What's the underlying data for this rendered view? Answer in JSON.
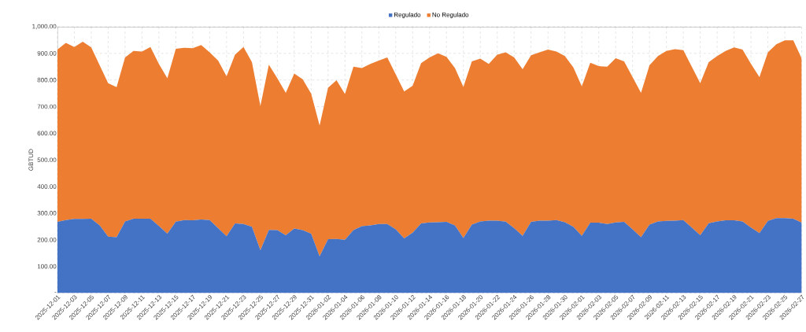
{
  "chart_data": {
    "type": "area",
    "stacked": true,
    "ylabel": "GBTUD",
    "legend": "top",
    "grid": true,
    "categories": [
      "2025-12-01",
      null,
      "2025-12-03",
      null,
      "2025-12-05",
      null,
      "2025-12-07",
      null,
      "2025-12-09",
      null,
      "2025-12-11",
      null,
      "2025-12-13",
      null,
      "2025-12-15",
      null,
      "2025-12-17",
      null,
      "2025-12-19",
      null,
      "2025-12-21",
      null,
      "2025-12-23",
      null,
      "2025-12-25",
      null,
      "2025-12-27",
      null,
      "2025-12-29",
      null,
      "2025-12-31",
      null,
      "2026-01-02",
      null,
      "2026-01-04",
      null,
      "2026-01-06",
      null,
      "2026-01-08",
      null,
      "2026-01-10",
      null,
      "2026-01-12",
      null,
      "2026-01-14",
      null,
      "2026-01-16",
      null,
      "2026-01-18",
      null,
      "2026-01-20",
      null,
      "2026-01-22",
      null,
      "2026-01-24",
      null,
      "2026-01-26",
      null,
      "2026-01-28",
      null,
      "2026-01-30",
      null,
      "2026-02-01",
      null,
      "2026-02-03",
      null,
      "2026-02-05",
      null,
      "2026-02-07",
      null,
      "2026-02-09",
      null,
      "2026-02-11",
      null,
      "2026-02-13",
      null,
      "2026-02-15",
      null,
      "2026-02-17",
      null,
      "2026-02-19",
      null,
      "2026-02-21",
      null,
      "2026-02-23",
      null,
      "2026-02-25",
      null,
      "2026-02-27"
    ],
    "ylim": [
      0,
      1000
    ],
    "yticks": [
      {
        "value": 0,
        "label": "-"
      },
      {
        "value": 100,
        "label": "100.00"
      },
      {
        "value": 200,
        "label": "200.00"
      },
      {
        "value": 300,
        "label": "300.00"
      },
      {
        "value": 400,
        "label": "400.00"
      },
      {
        "value": 500,
        "label": "500.00"
      },
      {
        "value": 600,
        "label": "600.00"
      },
      {
        "value": 700,
        "label": "700.00"
      },
      {
        "value": 800,
        "label": "800.00"
      },
      {
        "value": 900,
        "label": "900.00"
      },
      {
        "value": 1000,
        "label": "1,000.00"
      }
    ],
    "series": [
      {
        "name": "Regulado",
        "color": "#4472c4",
        "values": [
          267,
          274,
          278,
          278,
          279,
          254,
          212,
          210,
          269,
          279,
          279,
          279,
          252,
          223,
          268,
          274,
          273,
          276,
          274,
          244,
          213,
          261,
          259,
          249,
          161,
          237,
          236,
          217,
          242,
          236,
          223,
          138,
          202,
          203,
          200,
          236,
          251,
          254,
          259,
          259,
          239,
          205,
          227,
          261,
          265,
          266,
          267,
          254,
          207,
          257,
          269,
          272,
          272,
          268,
          244,
          215,
          267,
          272,
          272,
          274,
          266,
          249,
          215,
          264,
          264,
          259,
          265,
          267,
          239,
          210,
          257,
          269,
          271,
          272,
          274,
          246,
          217,
          262,
          269,
          273,
          273,
          269,
          246,
          225,
          271,
          281,
          281,
          279,
          264
        ]
      },
      {
        "name": "No Regulado",
        "color": "#ed7d31",
        "values": [
          647,
          665,
          646,
          666,
          643,
          601,
          576,
          563,
          616,
          630,
          628,
          645,
          608,
          583,
          649,
          647,
          646,
          655,
          630,
          629,
          601,
          634,
          665,
          618,
          541,
          620,
          570,
          535,
          582,
          567,
          526,
          491,
          569,
          596,
          547,
          614,
          594,
          606,
          614,
          626,
          582,
          552,
          551,
          602,
          620,
          634,
          620,
          591,
          567,
          613,
          611,
          588,
          623,
          636,
          641,
          625,
          626,
          632,
          642,
          633,
          624,
          598,
          561,
          601,
          588,
          591,
          617,
          603,
          572,
          542,
          598,
          621,
          638,
          644,
          638,
          604,
          571,
          605,
          621,
          636,
          649,
          645,
          614,
          586,
          633,
          653,
          668,
          670,
          616
        ]
      }
    ]
  }
}
